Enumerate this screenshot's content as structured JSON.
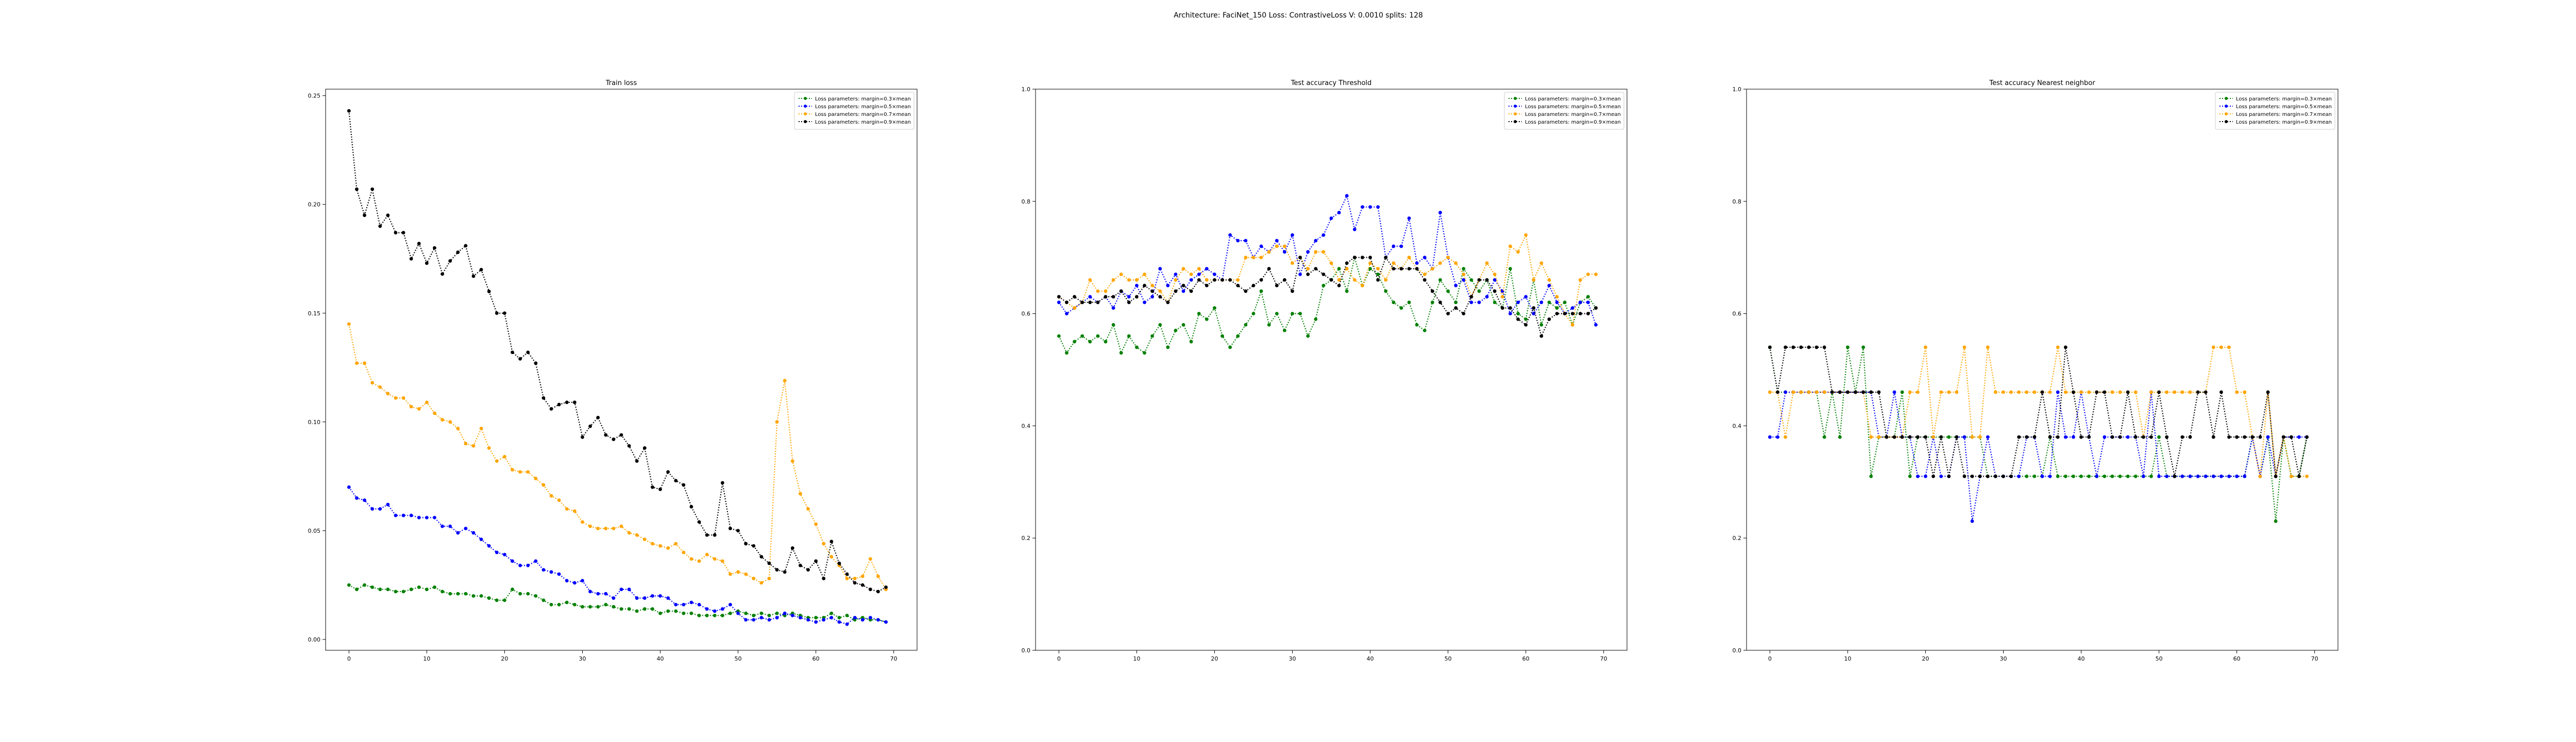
{
  "suptitle": "Architecture: FaciNet_150 Loss: ContrastiveLoss V: 0.0010 splits: 128",
  "colors": {
    "m03": "#008000",
    "m05": "#0000ff",
    "m07": "#ffa500",
    "m09": "#000000",
    "axes": "#000000"
  },
  "legend_labels": [
    "Loss parameters: margin=0.3×mean",
    "Loss parameters: margin=0.5×mean",
    "Loss parameters: margin=0.7×mean",
    "Loss parameters: margin=0.9×mean"
  ],
  "chart_data": [
    {
      "type": "line",
      "title": "Train loss",
      "xlabel": "",
      "ylabel": "",
      "xlim": [
        -3,
        73
      ],
      "ylim": [
        -0.005,
        0.253
      ],
      "xticks": [
        0,
        10,
        20,
        30,
        40,
        50,
        60,
        70
      ],
      "yticks": [
        0.0,
        0.05,
        0.1,
        0.15,
        0.2,
        0.25
      ],
      "ytick_labels": [
        "0.00",
        "0.05",
        "0.10",
        "0.15",
        "0.20",
        "0.25"
      ],
      "legend": "top-right",
      "series": [
        {
          "name": "Loss parameters: margin=0.3×mean",
          "color": "#008000",
          "values": [
            0.025,
            0.023,
            0.025,
            0.024,
            0.023,
            0.023,
            0.022,
            0.022,
            0.023,
            0.024,
            0.023,
            0.024,
            0.022,
            0.021,
            0.021,
            0.021,
            0.02,
            0.02,
            0.019,
            0.018,
            0.018,
            0.023,
            0.021,
            0.021,
            0.02,
            0.018,
            0.016,
            0.016,
            0.017,
            0.016,
            0.015,
            0.015,
            0.015,
            0.016,
            0.015,
            0.014,
            0.014,
            0.013,
            0.014,
            0.014,
            0.012,
            0.013,
            0.013,
            0.012,
            0.012,
            0.011,
            0.011,
            0.011,
            0.011,
            0.012,
            0.013,
            0.012,
            0.011,
            0.012,
            0.011,
            0.012,
            0.011,
            0.012,
            0.011,
            0.01,
            0.01,
            0.01,
            0.012,
            0.01,
            0.011,
            0.009,
            0.01,
            0.009,
            0.009,
            0.008
          ]
        },
        {
          "name": "Loss parameters: margin=0.5×mean",
          "color": "#0000ff",
          "values": [
            0.07,
            0.065,
            0.064,
            0.06,
            0.06,
            0.062,
            0.057,
            0.057,
            0.057,
            0.056,
            0.056,
            0.056,
            0.052,
            0.052,
            0.049,
            0.051,
            0.049,
            0.046,
            0.043,
            0.04,
            0.039,
            0.036,
            0.034,
            0.034,
            0.036,
            0.032,
            0.031,
            0.03,
            0.027,
            0.026,
            0.027,
            0.022,
            0.021,
            0.021,
            0.019,
            0.023,
            0.023,
            0.019,
            0.019,
            0.02,
            0.02,
            0.019,
            0.016,
            0.016,
            0.017,
            0.016,
            0.014,
            0.013,
            0.014,
            0.016,
            0.012,
            0.009,
            0.009,
            0.01,
            0.009,
            0.01,
            0.012,
            0.011,
            0.01,
            0.009,
            0.008,
            0.009,
            0.01,
            0.008,
            0.007,
            0.01,
            0.009,
            0.01,
            0.009,
            0.008
          ]
        },
        {
          "name": "Loss parameters: margin=0.7×mean",
          "color": "#ffa500",
          "values": [
            0.145,
            0.127,
            0.127,
            0.118,
            0.116,
            0.113,
            0.111,
            0.111,
            0.107,
            0.106,
            0.109,
            0.104,
            0.101,
            0.1,
            0.097,
            0.09,
            0.089,
            0.097,
            0.088,
            0.082,
            0.084,
            0.078,
            0.077,
            0.077,
            0.074,
            0.071,
            0.066,
            0.064,
            0.06,
            0.059,
            0.054,
            0.052,
            0.051,
            0.051,
            0.051,
            0.052,
            0.049,
            0.048,
            0.046,
            0.044,
            0.043,
            0.042,
            0.044,
            0.04,
            0.037,
            0.036,
            0.039,
            0.037,
            0.036,
            0.03,
            0.031,
            0.03,
            0.028,
            0.026,
            0.028,
            0.1,
            0.119,
            0.082,
            0.067,
            0.06,
            0.053,
            0.044,
            0.038,
            0.034,
            0.028,
            0.028,
            0.029,
            0.037,
            0.029,
            0.023
          ]
        },
        {
          "name": "Loss parameters: margin=0.9×mean",
          "color": "#000000",
          "values": [
            0.243,
            0.207,
            0.195,
            0.207,
            0.19,
            0.195,
            0.187,
            0.187,
            0.175,
            0.182,
            0.173,
            0.18,
            0.168,
            0.174,
            0.178,
            0.181,
            0.167,
            0.17,
            0.16,
            0.15,
            0.15,
            0.132,
            0.129,
            0.132,
            0.127,
            0.111,
            0.106,
            0.108,
            0.109,
            0.109,
            0.093,
            0.098,
            0.102,
            0.094,
            0.092,
            0.094,
            0.089,
            0.082,
            0.088,
            0.07,
            0.069,
            0.077,
            0.073,
            0.071,
            0.061,
            0.054,
            0.048,
            0.048,
            0.072,
            0.051,
            0.05,
            0.044,
            0.043,
            0.038,
            0.035,
            0.032,
            0.031,
            0.042,
            0.034,
            0.032,
            0.036,
            0.028,
            0.045,
            0.035,
            0.03,
            0.026,
            0.025,
            0.023,
            0.022,
            0.024
          ]
        }
      ]
    },
    {
      "type": "line",
      "title": "Test accuracy Threshold",
      "xlabel": "",
      "ylabel": "",
      "xlim": [
        -3,
        73
      ],
      "ylim": [
        0.0,
        1.0
      ],
      "xticks": [
        0,
        10,
        20,
        30,
        40,
        50,
        60,
        70
      ],
      "yticks": [
        0.0,
        0.2,
        0.4,
        0.6,
        0.8,
        1.0
      ],
      "ytick_labels": [
        "0.0",
        "0.2",
        "0.4",
        "0.6",
        "0.8",
        "1.0"
      ],
      "legend": "top-right",
      "series": [
        {
          "name": "Loss parameters: margin=0.3×mean",
          "color": "#008000",
          "values": [
            0.56,
            0.53,
            0.55,
            0.56,
            0.55,
            0.56,
            0.55,
            0.58,
            0.53,
            0.56,
            0.54,
            0.53,
            0.56,
            0.58,
            0.54,
            0.57,
            0.58,
            0.55,
            0.6,
            0.59,
            0.61,
            0.56,
            0.54,
            0.56,
            0.58,
            0.6,
            0.64,
            0.58,
            0.6,
            0.57,
            0.6,
            0.6,
            0.56,
            0.59,
            0.65,
            0.66,
            0.68,
            0.64,
            0.7,
            0.65,
            0.68,
            0.67,
            0.64,
            0.62,
            0.61,
            0.62,
            0.58,
            0.57,
            0.62,
            0.66,
            0.64,
            0.62,
            0.68,
            0.66,
            0.64,
            0.66,
            0.62,
            0.61,
            0.68,
            0.6,
            0.59,
            0.66,
            0.58,
            0.62,
            0.61,
            0.62,
            0.58,
            0.62,
            0.63,
            0.61
          ]
        },
        {
          "name": "Loss parameters: margin=0.5×mean",
          "color": "#0000ff",
          "values": [
            0.62,
            0.6,
            0.61,
            0.62,
            0.63,
            0.62,
            0.63,
            0.61,
            0.64,
            0.63,
            0.65,
            0.62,
            0.63,
            0.68,
            0.65,
            0.67,
            0.64,
            0.66,
            0.67,
            0.68,
            0.67,
            0.66,
            0.74,
            0.73,
            0.73,
            0.7,
            0.72,
            0.71,
            0.73,
            0.71,
            0.74,
            0.67,
            0.71,
            0.73,
            0.74,
            0.77,
            0.78,
            0.81,
            0.75,
            0.79,
            0.79,
            0.79,
            0.7,
            0.72,
            0.72,
            0.77,
            0.69,
            0.7,
            0.68,
            0.78,
            0.7,
            0.65,
            0.66,
            0.62,
            0.62,
            0.63,
            0.66,
            0.64,
            0.6,
            0.62,
            0.63,
            0.6,
            0.62,
            0.65,
            0.62,
            0.6,
            0.61,
            0.62,
            0.62,
            0.58
          ]
        },
        {
          "name": "Loss parameters: margin=0.7×mean",
          "color": "#ffa500",
          "values": [
            0.63,
            0.62,
            0.61,
            0.62,
            0.66,
            0.64,
            0.64,
            0.66,
            0.67,
            0.66,
            0.66,
            0.67,
            0.65,
            0.64,
            0.62,
            0.66,
            0.68,
            0.67,
            0.68,
            0.66,
            0.66,
            0.66,
            0.66,
            0.66,
            0.7,
            0.7,
            0.7,
            0.71,
            0.72,
            0.72,
            0.69,
            0.7,
            0.68,
            0.71,
            0.71,
            0.69,
            0.66,
            0.68,
            0.66,
            0.65,
            0.69,
            0.68,
            0.66,
            0.69,
            0.68,
            0.7,
            0.68,
            0.67,
            0.68,
            0.69,
            0.7,
            0.69,
            0.67,
            0.63,
            0.66,
            0.69,
            0.67,
            0.63,
            0.72,
            0.71,
            0.74,
            0.66,
            0.69,
            0.66,
            0.63,
            0.6,
            0.58,
            0.66,
            0.67,
            0.67
          ]
        },
        {
          "name": "Loss parameters: margin=0.9×mean",
          "color": "#000000",
          "values": [
            0.63,
            0.62,
            0.63,
            0.62,
            0.62,
            0.62,
            0.63,
            0.63,
            0.64,
            0.62,
            0.63,
            0.65,
            0.64,
            0.63,
            0.62,
            0.64,
            0.65,
            0.64,
            0.66,
            0.65,
            0.66,
            0.66,
            0.66,
            0.65,
            0.64,
            0.65,
            0.66,
            0.68,
            0.65,
            0.66,
            0.64,
            0.7,
            0.67,
            0.68,
            0.67,
            0.66,
            0.65,
            0.69,
            0.7,
            0.7,
            0.7,
            0.66,
            0.7,
            0.68,
            0.68,
            0.68,
            0.68,
            0.66,
            0.64,
            0.62,
            0.6,
            0.61,
            0.6,
            0.63,
            0.66,
            0.66,
            0.64,
            0.61,
            0.61,
            0.59,
            0.58,
            0.61,
            0.56,
            0.59,
            0.6,
            0.6,
            0.6,
            0.6,
            0.6,
            0.61
          ]
        }
      ]
    },
    {
      "type": "line",
      "title": "Test accuracy Nearest neighbor",
      "xlabel": "",
      "ylabel": "",
      "xlim": [
        -3,
        73
      ],
      "ylim": [
        0.0,
        1.0
      ],
      "xticks": [
        0,
        10,
        20,
        30,
        40,
        50,
        60,
        70
      ],
      "yticks": [
        0.0,
        0.2,
        0.4,
        0.6,
        0.8,
        1.0
      ],
      "ytick_labels": [
        "0.0",
        "0.2",
        "0.4",
        "0.6",
        "0.8",
        "1.0"
      ],
      "legend": "top-right",
      "series": [
        {
          "name": "Loss parameters: margin=0.3×mean",
          "color": "#008000",
          "values": [
            0.54,
            0.46,
            0.46,
            0.46,
            0.46,
            0.46,
            0.46,
            0.38,
            0.46,
            0.38,
            0.54,
            0.46,
            0.54,
            0.31,
            0.38,
            0.38,
            0.38,
            0.46,
            0.31,
            0.38,
            0.38,
            0.38,
            0.38,
            0.38,
            0.38,
            0.38,
            0.38,
            0.38,
            0.31,
            0.31,
            0.31,
            0.31,
            0.31,
            0.31,
            0.31,
            0.31,
            0.38,
            0.31,
            0.31,
            0.31,
            0.31,
            0.31,
            0.31,
            0.31,
            0.31,
            0.31,
            0.31,
            0.31,
            0.31,
            0.31,
            0.38,
            0.31,
            0.31,
            0.31,
            0.31,
            0.31,
            0.31,
            0.31,
            0.31,
            0.31,
            0.31,
            0.31,
            0.38,
            0.31,
            0.38,
            0.23,
            0.38,
            0.31,
            0.31,
            0.38
          ]
        },
        {
          "name": "Loss parameters: margin=0.5×mean",
          "color": "#0000ff",
          "values": [
            0.38,
            0.38,
            0.46,
            0.46,
            0.46,
            0.46,
            0.46,
            0.46,
            0.46,
            0.46,
            0.46,
            0.46,
            0.46,
            0.46,
            0.38,
            0.38,
            0.46,
            0.38,
            0.38,
            0.31,
            0.31,
            0.38,
            0.31,
            0.31,
            0.38,
            0.38,
            0.23,
            0.31,
            0.38,
            0.31,
            0.31,
            0.31,
            0.31,
            0.38,
            0.38,
            0.31,
            0.31,
            0.46,
            0.38,
            0.38,
            0.46,
            0.38,
            0.31,
            0.38,
            0.38,
            0.38,
            0.38,
            0.38,
            0.31,
            0.46,
            0.31,
            0.31,
            0.31,
            0.31,
            0.31,
            0.31,
            0.31,
            0.31,
            0.31,
            0.31,
            0.31,
            0.31,
            0.38,
            0.31,
            0.38,
            0.31,
            0.38,
            0.38,
            0.38,
            0.38
          ]
        },
        {
          "name": "Loss parameters: margin=0.7×mean",
          "color": "#ffa500",
          "values": [
            0.46,
            0.46,
            0.38,
            0.46,
            0.46,
            0.46,
            0.46,
            0.46,
            0.46,
            0.46,
            0.46,
            0.46,
            0.46,
            0.38,
            0.38,
            0.38,
            0.38,
            0.38,
            0.46,
            0.46,
            0.54,
            0.38,
            0.46,
            0.46,
            0.46,
            0.54,
            0.38,
            0.38,
            0.54,
            0.46,
            0.46,
            0.46,
            0.46,
            0.46,
            0.46,
            0.46,
            0.46,
            0.54,
            0.46,
            0.46,
            0.46,
            0.46,
            0.46,
            0.46,
            0.46,
            0.46,
            0.46,
            0.46,
            0.38,
            0.46,
            0.46,
            0.46,
            0.46,
            0.46,
            0.46,
            0.46,
            0.46,
            0.54,
            0.54,
            0.54,
            0.46,
            0.46,
            0.38,
            0.31,
            0.46,
            0.31,
            0.38,
            0.31,
            0.31,
            0.31
          ]
        },
        {
          "name": "Loss parameters: margin=0.9×mean",
          "color": "#000000",
          "values": [
            0.54,
            0.46,
            0.54,
            0.54,
            0.54,
            0.54,
            0.54,
            0.54,
            0.46,
            0.46,
            0.46,
            0.46,
            0.46,
            0.46,
            0.46,
            0.38,
            0.38,
            0.38,
            0.38,
            0.38,
            0.38,
            0.31,
            0.38,
            0.31,
            0.38,
            0.31,
            0.31,
            0.31,
            0.31,
            0.31,
            0.31,
            0.31,
            0.38,
            0.38,
            0.38,
            0.46,
            0.38,
            0.38,
            0.54,
            0.46,
            0.38,
            0.38,
            0.46,
            0.46,
            0.38,
            0.38,
            0.46,
            0.38,
            0.38,
            0.38,
            0.46,
            0.38,
            0.31,
            0.38,
            0.38,
            0.46,
            0.46,
            0.38,
            0.46,
            0.38,
            0.38,
            0.38,
            0.38,
            0.38,
            0.46,
            0.31,
            0.38,
            0.38,
            0.31,
            0.38
          ]
        }
      ]
    }
  ]
}
